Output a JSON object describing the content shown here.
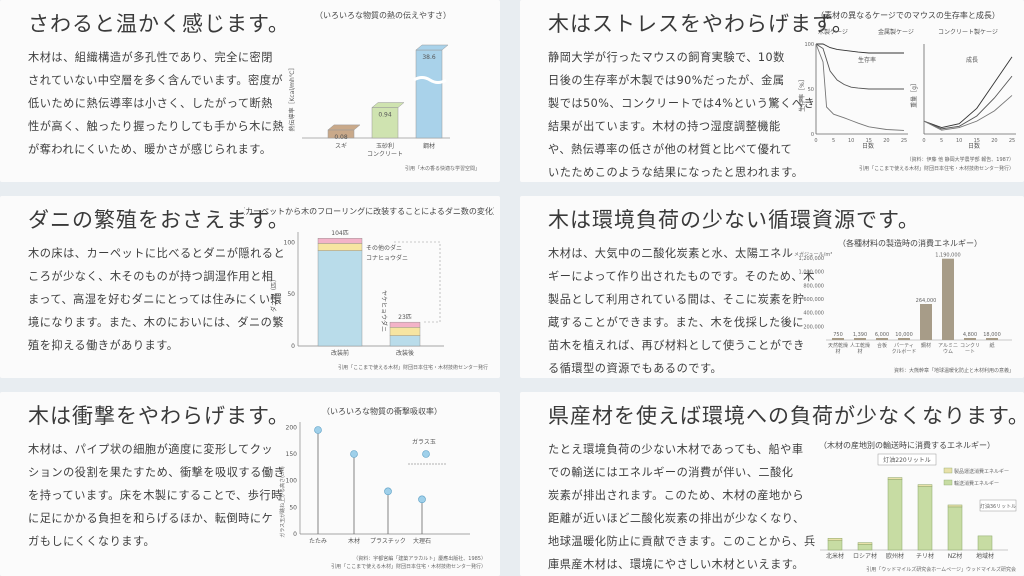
{
  "panels": [
    {
      "title": "さわると温かく感じます。",
      "body": [
        "木材は、組織構造が多孔性であり、完全に密閉",
        "されていない中空層を多く含んでいます。密度が",
        "低いために熱伝導率は小さく、したがって断熱",
        "性が高く、触ったり握ったりしても手から木に熱",
        "が奪われにくいため、暖かさが感じられます。"
      ],
      "chart_data": {
        "type": "bar",
        "title": "（いろいろな物質の熱の伝えやすさ）",
        "ylabel": "熱伝導率［Kcal/mh℃］",
        "categories": [
          "スギ",
          "玉砂利コンクリート",
          "鋼材"
        ],
        "category_lines": [
          [
            "スギ"
          ],
          [
            "玉砂利",
            "コンクリート"
          ],
          [
            "鋼材"
          ]
        ],
        "values": [
          0.08,
          0.94,
          38.6
        ],
        "value_labels": [
          "0.08",
          "0.94",
          "38.6"
        ],
        "colors": [
          "#c9a98a",
          "#cfe3b0",
          "#a9d2ea"
        ],
        "source": "引用「木の香る快適な学習空間」"
      }
    },
    {
      "title": "木はストレスをやわらげます。",
      "body": [
        "静岡大学が行ったマウスの飼育実験で、10数",
        "日後の生存率が木製では90%だったが、金属",
        "製では50%、コンクリートでは4%という驚くべき",
        "結果が出ています。木材の持つ湿度調整機能",
        "や、熱伝導率の低さが他の材質と比べて優れて",
        "いたためこのような結果になったと思われます。"
      ],
      "chart_data": {
        "type": "line",
        "title": "（素材の異なるケージでのマウスの生存率と成長）",
        "legend": [
          "木製ケージ",
          "金属製ケージ",
          "コンクリート製ケージ"
        ],
        "xlabel": "日数",
        "x_ticks": [
          "0",
          "5",
          "10",
          "15",
          "20",
          "25"
        ],
        "left_label": "生存率",
        "left_ylabel": "生存率［%］",
        "right_label": "成長",
        "right_ylabel": "重量［g］",
        "y_ticks": [
          "100",
          "50",
          "0"
        ],
        "survival_series": [
          {
            "x": [
              0,
              2,
              4,
              6,
              8,
              10,
              12,
              15,
              20,
              25
            ],
            "values": [
              100,
              100,
              96,
              94,
              93,
              92,
              91,
              90,
              90,
              90
            ]
          },
          {
            "x": [
              0,
              2,
              4,
              6,
              8,
              10,
              12,
              15,
              20,
              25
            ],
            "values": [
              100,
              95,
              70,
              60,
              55,
              52,
              51,
              50,
              50,
              50
            ]
          },
          {
            "x": [
              0,
              2,
              3,
              5,
              8,
              10,
              12,
              15,
              20,
              25
            ],
            "values": [
              100,
              80,
              30,
              22,
              18,
              15,
              12,
              8,
              5,
              4
            ]
          }
        ],
        "growth_series": [
          {
            "x": [
              0,
              5,
              10,
              15,
              20,
              25
            ],
            "values": [
              10,
              5,
              8,
              20,
              40,
              60
            ]
          },
          {
            "x": [
              0,
              5,
              10,
              15,
              20,
              25
            ],
            "values": [
              10,
              4,
              6,
              14,
              28,
              45
            ]
          },
          {
            "x": [
              0,
              5,
              10,
              15,
              20,
              25
            ],
            "values": [
              10,
              3,
              5,
              10,
              18,
              30
            ]
          }
        ],
        "source": "（資料：伊藤 他 静岡大学農学部 報告、1987）",
        "source2": "引用「ここまで使える木材」財団日本住宅・木材技術センター発行）"
      }
    },
    {
      "title": "ダニの繁殖をおさえます。",
      "body": [
        "木の床は、カーペットに比べるとダニが隠れると",
        "ころが少なく、木そのものが持つ調湿作用と相",
        "まって、高湿を好むダニにとっては住みにくい環",
        "境になります。また、木のにおいには、ダニの繁",
        "殖を抑える働きがあります。"
      ],
      "chart_data": {
        "type": "bar",
        "title": "（カーペットから木のフローリングに改装することによるダニ数の変化）",
        "ylabel": "ダニ数（匹）",
        "categories": [
          "改装前",
          "改装後"
        ],
        "totals": [
          104,
          23
        ],
        "total_labels": [
          "104匹",
          "23匹"
        ],
        "legend": [
          "その他のダニ",
          "コナヒョウダニ",
          "ヤケヒョウダニ"
        ],
        "colors": [
          "#f3b3c8",
          "#f7e5a1",
          "#b9dcea"
        ],
        "series": [
          {
            "name": "その他のダニ",
            "values": [
              5,
              5
            ]
          },
          {
            "name": "コナヒョウダニ",
            "values": [
              7,
              8
            ]
          },
          {
            "name": "ヤケヒョウダニ",
            "values": [
              92,
              10
            ]
          }
        ],
        "y_ticks": [
          "100",
          "50",
          "0"
        ],
        "ylim": [
          0,
          110
        ],
        "source": "引用「ここまで使える木材」財団日本住宅・木材技術センター発行"
      }
    },
    {
      "title": "木は環境負荷の少ない循環資源です。",
      "body": [
        "木材は、大気中の二酸化炭素と水、太陽エネル",
        "ギーによって作り出されたものです。そのため、木",
        "製品として利用されている間は、そこに炭素を貯",
        "蔵することができます。また、木を伐採した後に",
        "苗木を植えれば、再び材料として使うことができ",
        "る循環型の資源でもあるのです。"
      ],
      "chart_data": {
        "type": "bar",
        "title": "（各種材料の製造時の消費エネルギー）",
        "ylabel": "メガジュール/m³",
        "y_ticks": [
          "1,200,000",
          "1,000,000",
          "800,000",
          "600,000",
          "400,000",
          "200,000"
        ],
        "categories": [
          "天然乾燥材",
          "人工乾燥材",
          "合板",
          "パーティクルボード",
          "鋼材",
          "アルミニウム",
          "コンクリート",
          "紙"
        ],
        "values": [
          750,
          1390,
          6000,
          10000,
          264000,
          1190000,
          4800,
          18000
        ],
        "value_labels": [
          "750",
          "1,390",
          "6,000",
          "10,000",
          "264,000",
          "1,190,000",
          "4,800",
          "18,000"
        ],
        "color": "#a79c88",
        "source": "資料：大熊幹章「地球温暖化防止と木材利用の意義」"
      }
    },
    {
      "title": "木は衝撃をやわらげます。",
      "body": [
        "木材は、パイプ状の細胞が適度に変形してクッ",
        "ションの役割を果たすため、衝撃を吸収する働き",
        "を持っています。床を木製にすることで、歩行時",
        "に足にかかる負担を和らげるほか、転倒時にケ",
        "ガもしにくくなります。"
      ],
      "chart_data": {
        "type": "scatter",
        "title": "（いろいろな物質の衝撃吸収率）",
        "ylabel": "ガラス玉が跳ね上がる高さ(cm)",
        "y_ticks": [
          "200",
          "150",
          "100",
          "50",
          "0"
        ],
        "categories": [
          "たたみ",
          "木材",
          "プラスチック",
          "大理石"
        ],
        "values": [
          195,
          150,
          80,
          65
        ],
        "ylim": [
          0,
          210
        ],
        "annotation": "ガラス玉",
        "source": "（資料：宇都宮編「建築アラカルト」慶應出版社、1985）",
        "source2": "引用「ここまで使える木材」財団日本住宅・木材技術センター発行）"
      }
    },
    {
      "title": "県産材を使えば環境への負荷が少なくなります。",
      "body": [
        "たとえ環境負荷の少ない木材であっても、船や車",
        "での輸送にはエネルギーの消費が伴い、二酸化",
        "炭素が排出されます。このため、木材の産地から",
        "距離が近いほど二酸化炭素の排出が少なくなり、",
        "地球温暖化防止に貢献できます。このことから、兵",
        "庫県産木材は、環境にやさしい木材といえます。"
      ],
      "chart_data": {
        "type": "bar",
        "title": "（木材の産地別の輸送時に消費するエネルギー）",
        "legend": [
          "製品運送消費エネルギー",
          "輸送消費エネルギー"
        ],
        "categories": [
          "北米材",
          "ロシア材",
          "欧州材",
          "チリ材",
          "NZ材",
          "地域材"
        ],
        "series": [
          {
            "name": "製品運送消費エネルギー",
            "values": [
              6,
              5,
              5,
              5,
              5,
              0
            ]
          },
          {
            "name": "輸送消費エネルギー",
            "values": [
              24,
              14,
              180,
              162,
              110,
              36
            ]
          }
        ],
        "callouts": [
          "灯油220リットル",
          "灯油36リットル"
        ],
        "colors": [
          "#e8e1a9",
          "#c7dca3"
        ],
        "ylim": [
          0,
          240
        ],
        "source": "引用「ウッドマイルズ研究会ホームページ」ウッドマイルズ研究会"
      }
    }
  ]
}
